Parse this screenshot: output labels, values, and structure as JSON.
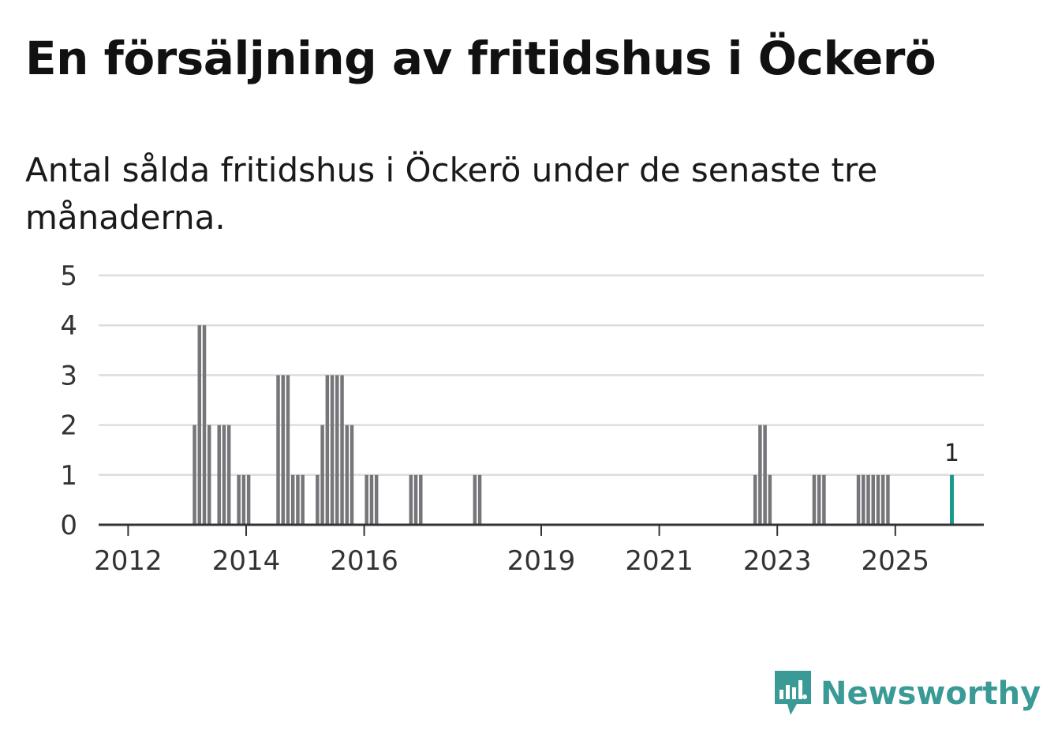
{
  "title": "En försäljning av fritidshus i Öckerö",
  "subtitle": "Antal sålda fritidshus i Öckerö under de senaste tre månaderna.",
  "brand": {
    "name": "Newsworthy",
    "color": "#3a9a96"
  },
  "colors": {
    "bar": "#76757a",
    "highlight": "#1a9a8f",
    "grid": "#dddddd",
    "axis": "#333333"
  },
  "chart_data": {
    "type": "bar",
    "title": "",
    "xlabel": "",
    "ylabel": "",
    "ylim": [
      0,
      5
    ],
    "yticks": [
      "0",
      "1",
      "2",
      "3",
      "4",
      "5"
    ],
    "grid": true,
    "x_start": "2011-07",
    "x_end": "2026-06",
    "xticks": [
      {
        "label": "2012",
        "date": "2012-01"
      },
      {
        "label": "2014",
        "date": "2014-01"
      },
      {
        "label": "2016",
        "date": "2016-01"
      },
      {
        "label": "2019",
        "date": "2019-01"
      },
      {
        "label": "2021",
        "date": "2021-01"
      },
      {
        "label": "2023",
        "date": "2023-01"
      },
      {
        "label": "2025",
        "date": "2025-01"
      }
    ],
    "series": [
      {
        "name": "Antal sålda fritidshus",
        "points": [
          [
            "2013-02",
            2
          ],
          [
            "2013-03",
            4
          ],
          [
            "2013-04",
            4
          ],
          [
            "2013-05",
            2
          ],
          [
            "2013-07",
            2
          ],
          [
            "2013-08",
            2
          ],
          [
            "2013-09",
            2
          ],
          [
            "2013-11",
            1
          ],
          [
            "2013-12",
            1
          ],
          [
            "2014-01",
            1
          ],
          [
            "2014-07",
            3
          ],
          [
            "2014-08",
            3
          ],
          [
            "2014-09",
            3
          ],
          [
            "2014-10",
            1
          ],
          [
            "2014-11",
            1
          ],
          [
            "2014-12",
            1
          ],
          [
            "2015-03",
            1
          ],
          [
            "2015-04",
            2
          ],
          [
            "2015-05",
            3
          ],
          [
            "2015-06",
            3
          ],
          [
            "2015-07",
            3
          ],
          [
            "2015-08",
            3
          ],
          [
            "2015-09",
            2
          ],
          [
            "2015-10",
            2
          ],
          [
            "2016-01",
            1
          ],
          [
            "2016-02",
            1
          ],
          [
            "2016-03",
            1
          ],
          [
            "2016-10",
            1
          ],
          [
            "2016-11",
            1
          ],
          [
            "2016-12",
            1
          ],
          [
            "2017-11",
            1
          ],
          [
            "2017-12",
            1
          ],
          [
            "2022-08",
            1
          ],
          [
            "2022-09",
            2
          ],
          [
            "2022-10",
            2
          ],
          [
            "2022-11",
            1
          ],
          [
            "2023-08",
            1
          ],
          [
            "2023-09",
            1
          ],
          [
            "2023-10",
            1
          ],
          [
            "2024-05",
            1
          ],
          [
            "2024-06",
            1
          ],
          [
            "2024-07",
            1
          ],
          [
            "2024-08",
            1
          ],
          [
            "2024-09",
            1
          ],
          [
            "2024-10",
            1
          ],
          [
            "2024-11",
            1
          ]
        ]
      }
    ],
    "highlight": {
      "date": "2025-12",
      "value": 1,
      "label": "1"
    }
  }
}
